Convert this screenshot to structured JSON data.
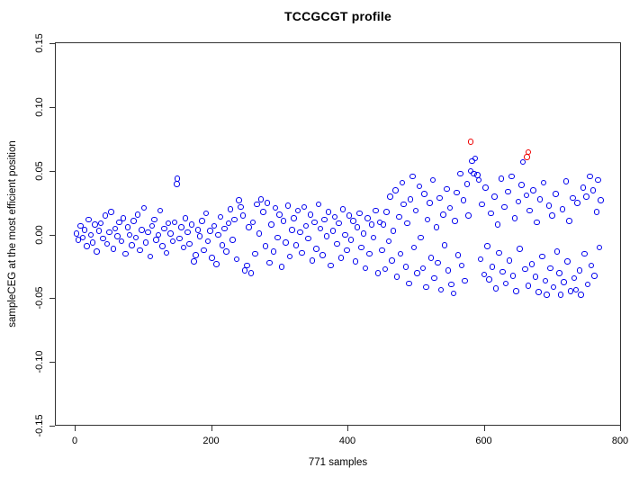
{
  "title": "TCCGCGT profile",
  "x_axis": {
    "label": "771 samples",
    "tick_labels": [
      "0",
      "200",
      "400",
      "600",
      "800"
    ]
  },
  "y_axis": {
    "label": "sampleCEG at the most efficient position",
    "tick_labels": [
      "0.15",
      "0.10",
      "0.05",
      "0.00",
      "-0.05",
      "-0.10",
      "-0.15"
    ]
  },
  "colors": {
    "point": "#0000ee",
    "outlier": "#ee0000",
    "axis": "#333333",
    "background": "#ffffff"
  },
  "chart_data": {
    "type": "scatter",
    "title": "TCCGCGT profile",
    "xlabel": "771 samples",
    "ylabel": "sampleCEG at the most efficient position",
    "xlim": [
      0,
      800
    ],
    "ylim": [
      -0.15,
      0.15
    ],
    "x_ticks": [
      0,
      200,
      400,
      600,
      800
    ],
    "y_ticks": [
      0.15,
      0.1,
      0.05,
      0.0,
      -0.05,
      -0.1,
      -0.15
    ],
    "grid": false,
    "legend": "none",
    "n_samples": 771,
    "marker": "open-circle",
    "series": [
      {
        "name": "samples",
        "color": "#0000ee",
        "points": [
          [
            2,
            0.001
          ],
          [
            5,
            -0.004
          ],
          [
            8,
            0.007
          ],
          [
            11,
            -0.002
          ],
          [
            14,
            0.004
          ],
          [
            17,
            -0.009
          ],
          [
            20,
            0.012
          ],
          [
            23,
            0.0
          ],
          [
            26,
            -0.006
          ],
          [
            29,
            0.008
          ],
          [
            32,
            -0.013
          ],
          [
            35,
            0.003
          ],
          [
            38,
            0.009
          ],
          [
            41,
            -0.003
          ],
          [
            44,
            0.015
          ],
          [
            47,
            -0.007
          ],
          [
            50,
            0.002
          ],
          [
            53,
            0.018
          ],
          [
            56,
            -0.011
          ],
          [
            59,
            0.005
          ],
          [
            62,
            -0.001
          ],
          [
            65,
            0.01
          ],
          [
            68,
            -0.005
          ],
          [
            71,
            0.013
          ],
          [
            74,
            -0.015
          ],
          [
            77,
            0.006
          ],
          [
            80,
            0.0
          ],
          [
            83,
            -0.008
          ],
          [
            86,
            0.011
          ],
          [
            89,
            -0.002
          ],
          [
            92,
            0.016
          ],
          [
            95,
            -0.012
          ],
          [
            98,
            0.004
          ],
          [
            101,
            0.021
          ],
          [
            104,
            -0.006
          ],
          [
            107,
            0.002
          ],
          [
            110,
            -0.017
          ],
          [
            113,
            0.007
          ],
          [
            116,
            0.012
          ],
          [
            119,
            -0.004
          ],
          [
            122,
            0.0
          ],
          [
            125,
            0.019
          ],
          [
            128,
            -0.009
          ],
          [
            131,
            0.005
          ],
          [
            134,
            -0.014
          ],
          [
            137,
            0.009
          ],
          [
            140,
            0.001
          ],
          [
            143,
            -0.005
          ],
          [
            146,
            0.01
          ],
          [
            149,
            0.04
          ],
          [
            150,
            0.044
          ],
          [
            153,
            -0.003
          ],
          [
            156,
            0.006
          ],
          [
            159,
            -0.01
          ],
          [
            162,
            0.013
          ],
          [
            165,
            0.002
          ],
          [
            168,
            -0.007
          ],
          [
            171,
            0.008
          ],
          [
            174,
            -0.021
          ],
          [
            177,
            -0.016
          ],
          [
            180,
            0.004
          ],
          [
            183,
            -0.001
          ],
          [
            186,
            0.011
          ],
          [
            189,
            -0.012
          ],
          [
            192,
            0.017
          ],
          [
            195,
            -0.005
          ],
          [
            198,
            0.003
          ],
          [
            201,
            -0.018
          ],
          [
            204,
            0.007
          ],
          [
            207,
            -0.023
          ],
          [
            210,
            0.0
          ],
          [
            213,
            0.014
          ],
          [
            216,
            -0.008
          ],
          [
            219,
            0.005
          ],
          [
            222,
            -0.013
          ],
          [
            225,
            0.009
          ],
          [
            228,
            0.02
          ],
          [
            231,
            -0.004
          ],
          [
            234,
            0.012
          ],
          [
            237,
            -0.019
          ],
          [
            240,
            0.027
          ],
          [
            243,
            0.022
          ],
          [
            246,
            0.015
          ],
          [
            249,
            -0.028
          ],
          [
            252,
            -0.024
          ],
          [
            255,
            0.006
          ],
          [
            258,
            -0.03
          ],
          [
            261,
            0.01
          ],
          [
            264,
            -0.015
          ],
          [
            267,
            0.024
          ],
          [
            270,
            0.001
          ],
          [
            273,
            0.028
          ],
          [
            276,
            0.018
          ],
          [
            279,
            -0.009
          ],
          [
            282,
            0.025
          ],
          [
            285,
            -0.022
          ],
          [
            288,
            0.008
          ],
          [
            291,
            -0.013
          ],
          [
            294,
            0.021
          ],
          [
            297,
            -0.002
          ],
          [
            300,
            0.016
          ],
          [
            303,
            -0.025
          ],
          [
            306,
            0.011
          ],
          [
            309,
            -0.006
          ],
          [
            312,
            0.023
          ],
          [
            315,
            -0.017
          ],
          [
            318,
            0.004
          ],
          [
            321,
            0.013
          ],
          [
            324,
            -0.008
          ],
          [
            327,
            0.019
          ],
          [
            330,
            0.002
          ],
          [
            333,
            -0.014
          ],
          [
            336,
            0.022
          ],
          [
            339,
            0.007
          ],
          [
            342,
            -0.003
          ],
          [
            345,
            0.016
          ],
          [
            348,
            -0.02
          ],
          [
            351,
            0.01
          ],
          [
            354,
            -0.011
          ],
          [
            357,
            0.024
          ],
          [
            360,
            0.005
          ],
          [
            363,
            -0.016
          ],
          [
            366,
            0.012
          ],
          [
            369,
            -0.001
          ],
          [
            372,
            0.018
          ],
          [
            375,
            -0.024
          ],
          [
            378,
            0.003
          ],
          [
            381,
            0.014
          ],
          [
            384,
            -0.007
          ],
          [
            387,
            0.009
          ],
          [
            390,
            -0.018
          ],
          [
            393,
            0.02
          ],
          [
            396,
            0.0
          ],
          [
            399,
            -0.012
          ],
          [
            402,
            0.015
          ],
          [
            405,
            -0.004
          ],
          [
            408,
            0.011
          ],
          [
            411,
            -0.021
          ],
          [
            414,
            0.006
          ],
          [
            417,
            0.017
          ],
          [
            420,
            -0.01
          ],
          [
            423,
            0.001
          ],
          [
            426,
            -0.026
          ],
          [
            429,
            0.013
          ],
          [
            432,
            -0.015
          ],
          [
            435,
            0.008
          ],
          [
            438,
            -0.002
          ],
          [
            441,
            0.019
          ],
          [
            444,
            -0.03
          ],
          [
            447,
            0.01
          ],
          [
            450,
            -0.012
          ],
          [
            452,
            0.008
          ],
          [
            455,
            -0.027
          ],
          [
            457,
            0.018
          ],
          [
            460,
            -0.005
          ],
          [
            462,
            0.03
          ],
          [
            465,
            -0.02
          ],
          [
            467,
            0.003
          ],
          [
            470,
            0.035
          ],
          [
            472,
            -0.033
          ],
          [
            475,
            0.014
          ],
          [
            477,
            -0.015
          ],
          [
            480,
            0.041
          ],
          [
            482,
            0.024
          ],
          [
            485,
            -0.025
          ],
          [
            487,
            0.009
          ],
          [
            490,
            -0.038
          ],
          [
            492,
            0.028
          ],
          [
            495,
            0.046
          ],
          [
            497,
            -0.01
          ],
          [
            500,
            0.019
          ],
          [
            502,
            -0.03
          ],
          [
            505,
            0.038
          ],
          [
            507,
            -0.002
          ],
          [
            510,
            -0.026
          ],
          [
            512,
            0.032
          ],
          [
            515,
            -0.041
          ],
          [
            517,
            0.012
          ],
          [
            520,
            0.025
          ],
          [
            522,
            -0.018
          ],
          [
            525,
            0.043
          ],
          [
            527,
            -0.034
          ],
          [
            530,
            0.006
          ],
          [
            532,
            -0.022
          ],
          [
            535,
            0.029
          ],
          [
            537,
            -0.043
          ],
          [
            540,
            0.016
          ],
          [
            542,
            -0.008
          ],
          [
            545,
            0.036
          ],
          [
            547,
            -0.028
          ],
          [
            550,
            0.021
          ],
          [
            552,
            -0.039
          ],
          [
            555,
            -0.046
          ],
          [
            557,
            0.011
          ],
          [
            560,
            0.033
          ],
          [
            562,
            -0.016
          ],
          [
            565,
            0.048
          ],
          [
            567,
            -0.024
          ],
          [
            570,
            0.027
          ],
          [
            572,
            -0.036
          ],
          [
            575,
            0.04
          ],
          [
            577,
            0.015
          ],
          [
            580,
            0.05
          ],
          [
            582,
            0.058
          ],
          [
            585,
            0.048
          ],
          [
            587,
            0.06
          ],
          [
            590,
            0.047
          ],
          [
            592,
            0.043
          ],
          [
            595,
            -0.019
          ],
          [
            597,
            0.024
          ],
          [
            600,
            -0.031
          ],
          [
            602,
            0.037
          ],
          [
            605,
            -0.009
          ],
          [
            607,
            -0.035
          ],
          [
            610,
            0.017
          ],
          [
            612,
            -0.025
          ],
          [
            615,
            0.03
          ],
          [
            617,
            -0.042
          ],
          [
            620,
            0.008
          ],
          [
            622,
            -0.014
          ],
          [
            625,
            0.044
          ],
          [
            627,
            -0.029
          ],
          [
            630,
            0.022
          ],
          [
            632,
            -0.038
          ],
          [
            635,
            0.034
          ],
          [
            637,
            -0.02
          ],
          [
            640,
            0.046
          ],
          [
            642,
            -0.032
          ],
          [
            645,
            0.013
          ],
          [
            647,
            -0.044
          ],
          [
            650,
            0.026
          ],
          [
            652,
            -0.011
          ],
          [
            655,
            0.039
          ],
          [
            657,
            0.057
          ],
          [
            660,
            -0.027
          ],
          [
            662,
            0.031
          ],
          [
            665,
            -0.04
          ],
          [
            667,
            0.019
          ],
          [
            670,
            -0.023
          ],
          [
            672,
            0.035
          ],
          [
            675,
            -0.033
          ],
          [
            677,
            0.01
          ],
          [
            680,
            -0.045
          ],
          [
            682,
            0.028
          ],
          [
            685,
            -0.017
          ],
          [
            687,
            0.041
          ],
          [
            690,
            -0.036
          ],
          [
            692,
            -0.047
          ],
          [
            695,
            0.023
          ],
          [
            697,
            -0.026
          ],
          [
            700,
            0.015
          ],
          [
            702,
            -0.041
          ],
          [
            705,
            0.032
          ],
          [
            707,
            -0.013
          ],
          [
            710,
            -0.03
          ],
          [
            712,
            -0.047
          ],
          [
            715,
            0.02
          ],
          [
            717,
            -0.037
          ],
          [
            720,
            0.042
          ],
          [
            722,
            -0.021
          ],
          [
            725,
            0.011
          ],
          [
            727,
            -0.044
          ],
          [
            730,
            0.029
          ],
          [
            732,
            -0.034
          ],
          [
            735,
            -0.043
          ],
          [
            737,
            0.025
          ],
          [
            740,
            -0.028
          ],
          [
            742,
            -0.047
          ],
          [
            745,
            0.037
          ],
          [
            747,
            -0.015
          ],
          [
            750,
            0.03
          ],
          [
            752,
            -0.039
          ],
          [
            755,
            0.046
          ],
          [
            757,
            -0.024
          ],
          [
            760,
            0.035
          ],
          [
            762,
            -0.032
          ],
          [
            765,
            0.018
          ],
          [
            767,
            0.043
          ],
          [
            769,
            -0.01
          ],
          [
            771,
            0.027
          ]
        ]
      },
      {
        "name": "highlighted-outliers",
        "color": "#ee0000",
        "points": [
          [
            580,
            0.073
          ],
          [
            663,
            0.061
          ],
          [
            665,
            0.065
          ]
        ]
      }
    ]
  }
}
